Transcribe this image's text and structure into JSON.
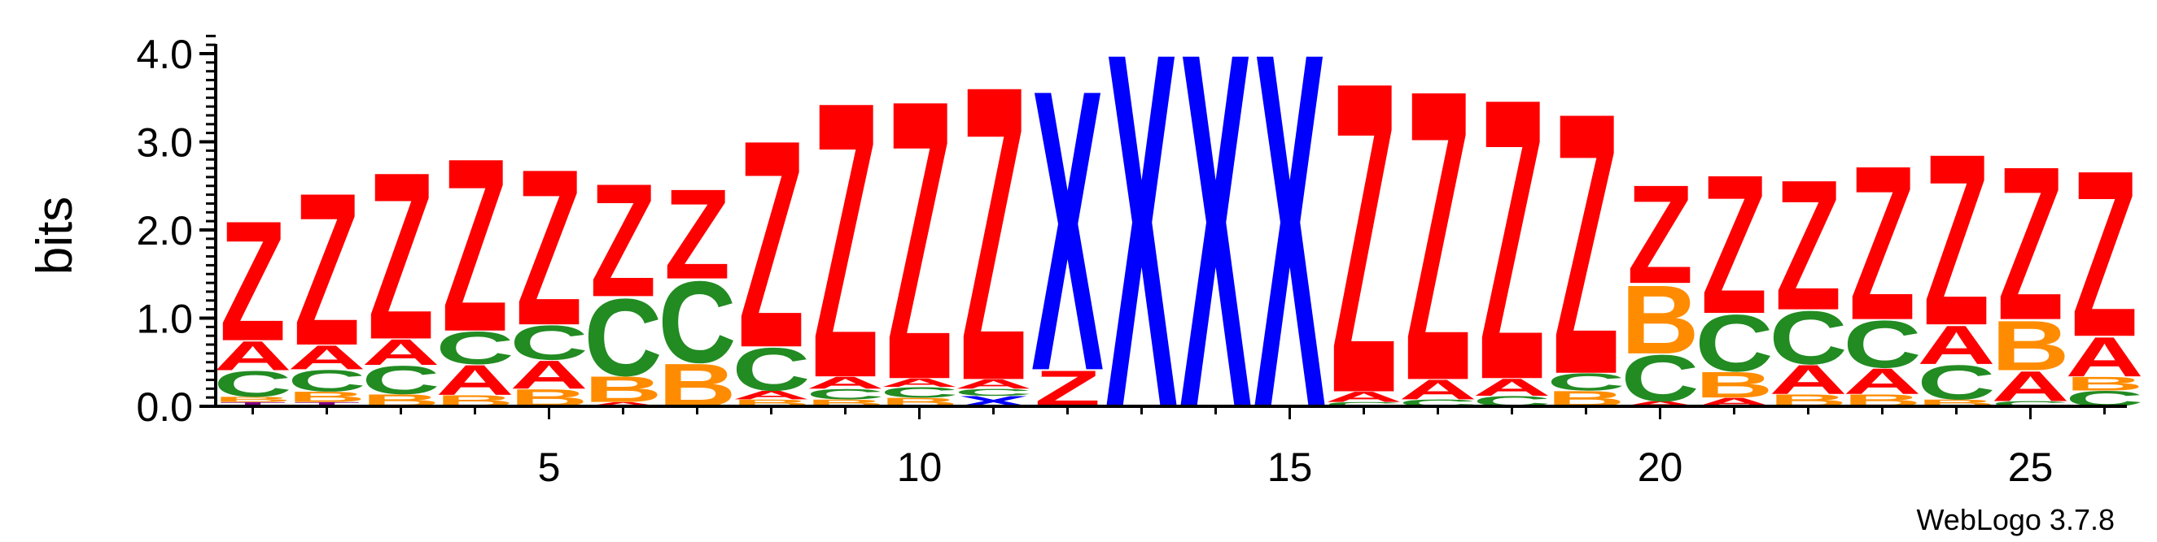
{
  "chart_data": {
    "type": "sequence-logo",
    "ylabel": "bits",
    "ylim": [
      0,
      4.0
    ],
    "yticks": [
      "0.0",
      "1.0",
      "2.0",
      "3.0",
      "4.0"
    ],
    "xticks": [
      5,
      10,
      15,
      20,
      25
    ],
    "credit": "WebLogo 3.7.8",
    "colors": {
      "Z": "#ff0000",
      "A": "#ff0000",
      "X": "#0000ff",
      "C": "#228b22",
      "B": "#ff8c00",
      "T": "#800080"
    },
    "positions": [
      {
        "pos": 1,
        "letters": [
          [
            "T",
            0.05
          ],
          [
            "B",
            0.06
          ],
          [
            "C",
            0.3
          ],
          [
            "A",
            0.34
          ],
          [
            "Z",
            1.4
          ]
        ]
      },
      {
        "pos": 2,
        "letters": [
          [
            "T",
            0.05
          ],
          [
            "B",
            0.12
          ],
          [
            "C",
            0.25
          ],
          [
            "A",
            0.28
          ],
          [
            "Z",
            1.78
          ]
        ]
      },
      {
        "pos": 3,
        "letters": [
          [
            "B",
            0.14
          ],
          [
            "C",
            0.33
          ],
          [
            "A",
            0.3
          ],
          [
            "Z",
            1.95
          ]
        ]
      },
      {
        "pos": 4,
        "letters": [
          [
            "B",
            0.13
          ],
          [
            "A",
            0.35
          ],
          [
            "C",
            0.38
          ],
          [
            "Z",
            2.02
          ]
        ]
      },
      {
        "pos": 5,
        "letters": [
          [
            "B",
            0.2
          ],
          [
            "A",
            0.33
          ],
          [
            "C",
            0.4
          ],
          [
            "Z",
            1.82
          ]
        ]
      },
      {
        "pos": 6,
        "letters": [
          [
            "A",
            0.05
          ],
          [
            "B",
            0.3
          ],
          [
            "C",
            0.9
          ],
          [
            "Z",
            1.32
          ]
        ]
      },
      {
        "pos": 7,
        "letters": [
          [
            "B",
            0.5
          ],
          [
            "C",
            0.95
          ],
          [
            "Z",
            1.05
          ]
        ]
      },
      {
        "pos": 8,
        "letters": [
          [
            "B",
            0.08
          ],
          [
            "A",
            0.1
          ],
          [
            "C",
            0.5
          ],
          [
            "Z",
            2.42
          ]
        ]
      },
      {
        "pos": 9,
        "letters": [
          [
            "B",
            0.08
          ],
          [
            "C",
            0.12
          ],
          [
            "A",
            0.14
          ],
          [
            "Z",
            3.22
          ]
        ]
      },
      {
        "pos": 10,
        "letters": [
          [
            "B",
            0.1
          ],
          [
            "C",
            0.12
          ],
          [
            "A",
            0.1
          ],
          [
            "Z",
            3.26
          ]
        ]
      },
      {
        "pos": 11,
        "letters": [
          [
            "X",
            0.12
          ],
          [
            "C",
            0.08
          ],
          [
            "A",
            0.11
          ],
          [
            "Z",
            3.44
          ]
        ]
      },
      {
        "pos": 12,
        "letters": [
          [
            "Z",
            0.42
          ],
          [
            "X",
            3.28
          ]
        ]
      },
      {
        "pos": 13,
        "letters": [
          [
            "X",
            4.15
          ]
        ]
      },
      {
        "pos": 14,
        "letters": [
          [
            "X",
            4.15
          ]
        ]
      },
      {
        "pos": 15,
        "letters": [
          [
            "X",
            4.15
          ]
        ]
      },
      {
        "pos": 16,
        "letters": [
          [
            "C",
            0.05
          ],
          [
            "A",
            0.12
          ],
          [
            "Z",
            3.63
          ]
        ]
      },
      {
        "pos": 17,
        "letters": [
          [
            "C",
            0.08
          ],
          [
            "A",
            0.23
          ],
          [
            "Z",
            3.39
          ]
        ]
      },
      {
        "pos": 18,
        "letters": [
          [
            "C",
            0.12
          ],
          [
            "A",
            0.2
          ],
          [
            "Z",
            3.28
          ]
        ]
      },
      {
        "pos": 19,
        "letters": [
          [
            "B",
            0.18
          ],
          [
            "C",
            0.2
          ],
          [
            "Z",
            3.05
          ]
        ]
      },
      {
        "pos": 20,
        "letters": [
          [
            "A",
            0.06
          ],
          [
            "C",
            0.54
          ],
          [
            "B",
            0.8
          ],
          [
            "Z",
            1.15
          ]
        ]
      },
      {
        "pos": 21,
        "letters": [
          [
            "A",
            0.1
          ],
          [
            "B",
            0.3
          ],
          [
            "C",
            0.66
          ],
          [
            "Z",
            1.62
          ]
        ]
      },
      {
        "pos": 22,
        "letters": [
          [
            "B",
            0.14
          ],
          [
            "A",
            0.34
          ],
          [
            "C",
            0.62
          ],
          [
            "Z",
            1.52
          ]
        ]
      },
      {
        "pos": 23,
        "letters": [
          [
            "B",
            0.14
          ],
          [
            "A",
            0.3
          ],
          [
            "C",
            0.55
          ],
          [
            "Z",
            1.8
          ]
        ]
      },
      {
        "pos": 24,
        "letters": [
          [
            "B",
            0.08
          ],
          [
            "C",
            0.4
          ],
          [
            "A",
            0.45
          ],
          [
            "Z",
            2.0
          ]
        ]
      },
      {
        "pos": 25,
        "letters": [
          [
            "C",
            0.06
          ],
          [
            "A",
            0.35
          ],
          [
            "B",
            0.58
          ],
          [
            "Z",
            1.79
          ]
        ]
      },
      {
        "pos": 26,
        "letters": [
          [
            "C",
            0.18
          ],
          [
            "B",
            0.16
          ],
          [
            "A",
            0.46
          ],
          [
            "Z",
            1.94
          ]
        ]
      }
    ]
  }
}
